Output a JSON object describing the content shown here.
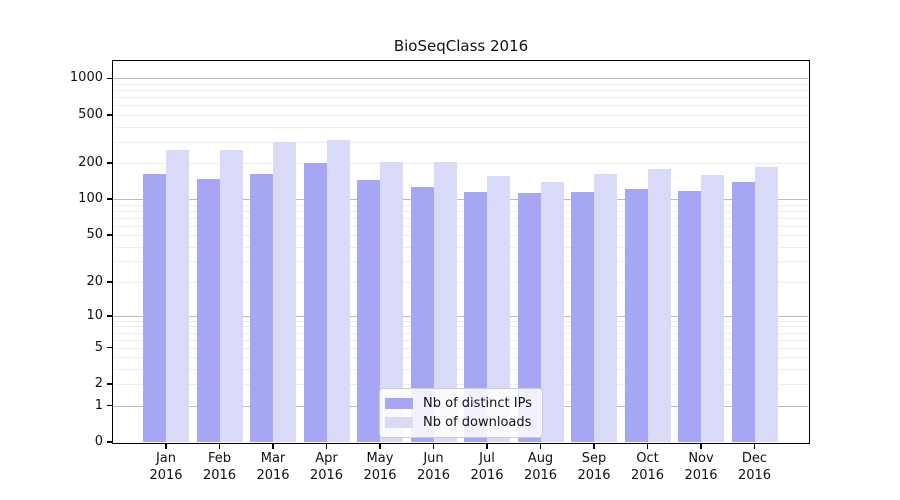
{
  "chart_data": {
    "type": "bar",
    "title": "BioSeqClass 2016",
    "categories": [
      "Jan",
      "Feb",
      "Mar",
      "Apr",
      "May",
      "Jun",
      "Jul",
      "Aug",
      "Sep",
      "Oct",
      "Nov",
      "Dec"
    ],
    "x_sublabel_year": "2016",
    "series": [
      {
        "name": "Nb of distinct IPs",
        "color": "#a6a6f4",
        "values": [
          162,
          146,
          161,
          200,
          143,
          126,
          114,
          113,
          114,
          122,
          116,
          138
        ]
      },
      {
        "name": "Nb of downloads",
        "color": "#d9d9f8",
        "values": [
          258,
          257,
          300,
          312,
          205,
          205,
          157,
          140,
          162,
          177,
          158,
          184
        ]
      }
    ],
    "yscale": "log10(1+x)",
    "y_ticks": [
      0,
      1,
      2,
      5,
      10,
      20,
      50,
      100,
      200,
      500,
      1000
    ],
    "ylim": [
      0,
      1390
    ],
    "grid": "horizontal major at decades, faint log minors",
    "legend_position": "lower center",
    "grid_major_color": "#bbbbbb",
    "grid_minor_color": "#ededed",
    "axis_color": "#000000"
  }
}
